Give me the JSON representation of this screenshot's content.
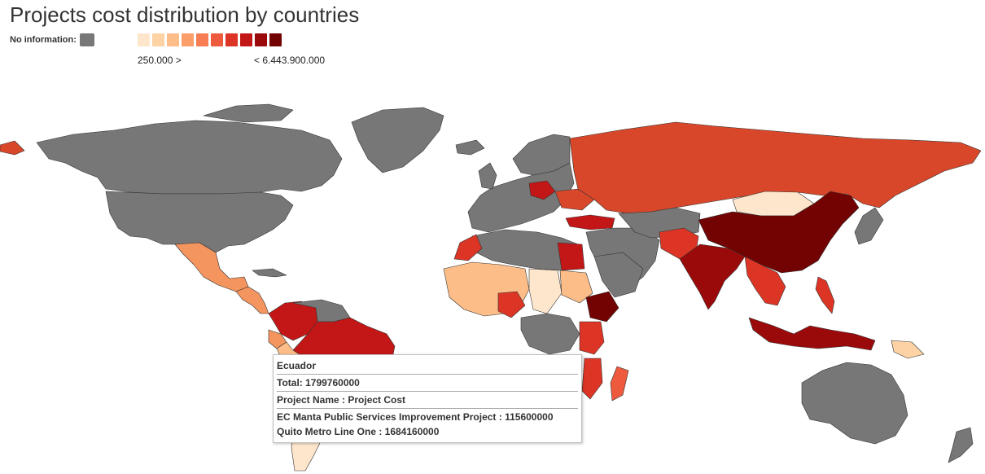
{
  "title": "Projects cost distribution by countries",
  "legend": {
    "no_info_label": "No information:",
    "no_info_color": "#777777",
    "scale_colors": [
      "#fee6cc",
      "#fdd3a5",
      "#fcbd88",
      "#fc9e6a",
      "#f77d55",
      "#ee5a3e",
      "#dc3526",
      "#c31717",
      "#9b0a0a",
      "#730303"
    ],
    "min_label": "250.000 >",
    "max_label": "< 6.443.900.000"
  },
  "tooltip": {
    "country": "Ecuador",
    "total": "Total: 1799760000",
    "header": "Project Name : Project Cost",
    "projects": [
      "EC Manta Public Services Improvement Project : 115600000",
      "Quito Metro Line One : 1684160000"
    ]
  },
  "colors": {
    "no_info": "#777777",
    "ocean": "#ffffff",
    "border": "#333333"
  }
}
